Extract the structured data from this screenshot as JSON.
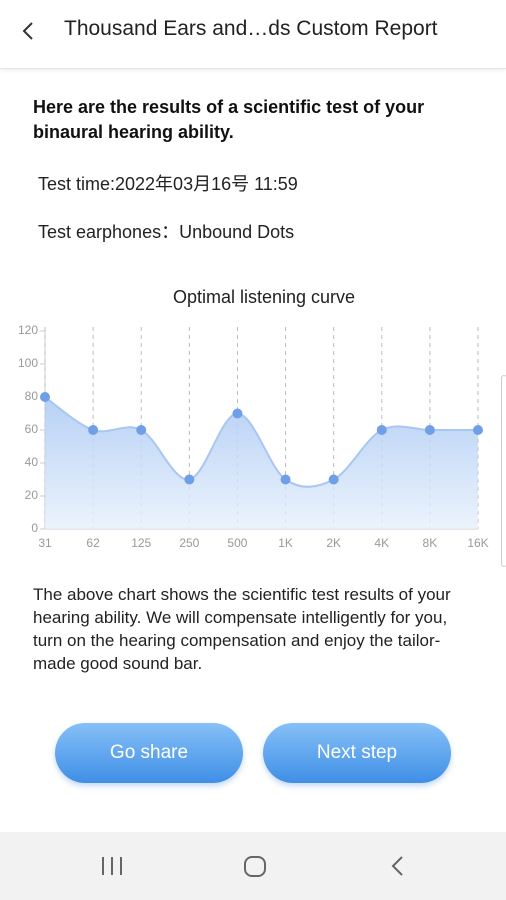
{
  "header": {
    "title": "Thousand Ears and…ds Custom Report"
  },
  "intro": "Here are the results of a scientific test of your binaural hearing ability.",
  "test_time": "Test time:2022年03月16号 11:59",
  "test_earphones": "Test earphones：Unbound Dots",
  "chart_data": {
    "type": "area",
    "title": "Optimal listening curve",
    "categories": [
      "31",
      "62",
      "125",
      "250",
      "500",
      "1K",
      "2K",
      "4K",
      "8K",
      "16K"
    ],
    "values": [
      80,
      60,
      60,
      30,
      70,
      30,
      30,
      60,
      60,
      60
    ],
    "color": "#6f9fe6",
    "ylim": [
      0,
      120
    ],
    "yticks": [
      0,
      20,
      40,
      60,
      80,
      100,
      120
    ],
    "grid": true
  },
  "description": "The above chart shows the scientific test results of your hearing ability. We will compensate intelligently for you, turn on the hearing compensation and enjoy the tailor-made good sound bar.",
  "buttons": [
    "Go share",
    "Next step"
  ]
}
